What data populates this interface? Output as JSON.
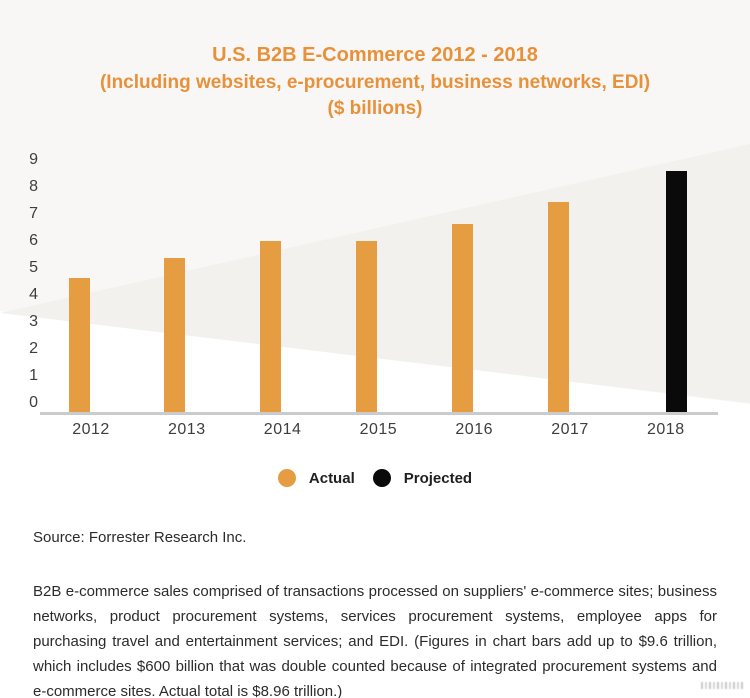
{
  "title": {
    "line1": "U.S. B2B E-Commerce 2012 - 2018",
    "line2": "(Including websites, e-procurement, business networks, EDI)",
    "line3": "($ billions)"
  },
  "chart_data": {
    "type": "bar",
    "categories": [
      "2012",
      "2013",
      "2014",
      "2015",
      "2016",
      "2017",
      "2018"
    ],
    "series": [
      {
        "name": "Actual",
        "color": "#e69c41",
        "values": [
          4.8,
          5.5,
          6.1,
          6.1,
          6.7,
          7.5,
          null
        ]
      },
      {
        "name": "Projected",
        "color": "#0a0a0a",
        "values": [
          null,
          null,
          null,
          null,
          null,
          null,
          8.6
        ]
      }
    ],
    "title": "U.S. B2B E-Commerce 2012 - 2018 (Including websites, e-procurement, business networks, EDI) ($ billions)",
    "xlabel": "",
    "ylabel": "",
    "ylim": [
      0,
      9
    ],
    "yticks": [
      0,
      1,
      2,
      3,
      4,
      5,
      6,
      7,
      8,
      9
    ],
    "grid": false,
    "legend_position": "bottom-center"
  },
  "legend": {
    "items": [
      {
        "label": "Actual",
        "color": "#e69c41"
      },
      {
        "label": "Projected",
        "color": "#0a0a0a"
      }
    ]
  },
  "source_text": "Source: Forrester Research Inc.",
  "footnote_text": "B2B e-commerce sales comprised of transactions processed on suppliers' e-commerce sites; business networks, product procurement systems, services procurement systems, employee apps for purchasing travel and entertainment services; and EDI. (Figures in chart bars add up to $9.6 trillion, which includes $600 billion that was double counted because of integrated procurement systems and e-commerce sites. Actual total is $8.96 trillion.)",
  "colors": {
    "title_orange": "#e8913b",
    "bar_orange": "#e69c41",
    "bar_black": "#0a0a0a",
    "background_light": "#f8f7f5",
    "background_wedge": "#f3f1ee",
    "axis_line": "#cbcbcb",
    "tick_text": "#3e3e3e",
    "body_text": "#2b2b2b"
  }
}
